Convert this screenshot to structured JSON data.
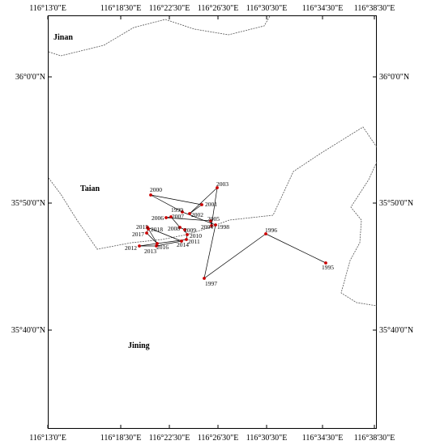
{
  "map": {
    "axes": {
      "lon_ticks": [
        "116°13'0\"E",
        "116°18'30\"E",
        "116°22'30\"E",
        "116°26'30\"E",
        "116°30'30\"E",
        "116°34'30\"E",
        "116°38'30\"E"
      ],
      "lat_ticks": [
        "36°0'0\"N",
        "35°50'0\"N",
        "35°40'0\"N"
      ]
    },
    "regions": [
      {
        "name": "Jinan"
      },
      {
        "name": "Taian"
      },
      {
        "name": "Jining"
      }
    ],
    "colors": {
      "point": "#cc0000",
      "track": "#000000",
      "boundary": "#555555",
      "frame": "#000000"
    },
    "track": [
      {
        "year": "1995"
      },
      {
        "year": "1996"
      },
      {
        "year": "1997"
      },
      {
        "year": "1998"
      },
      {
        "year": "1999"
      },
      {
        "year": "2000"
      },
      {
        "year": "2001"
      },
      {
        "year": "2002"
      },
      {
        "year": "2003"
      },
      {
        "year": "2004"
      },
      {
        "year": "2005"
      },
      {
        "year": "2006"
      },
      {
        "year": "2007"
      },
      {
        "year": "2008"
      },
      {
        "year": "2009"
      },
      {
        "year": "2010"
      },
      {
        "year": "2011"
      },
      {
        "year": "2012"
      },
      {
        "year": "2013"
      },
      {
        "year": "2014"
      },
      {
        "year": "2015"
      },
      {
        "year": "2016"
      },
      {
        "year": "2017"
      },
      {
        "year": "2018"
      }
    ]
  }
}
